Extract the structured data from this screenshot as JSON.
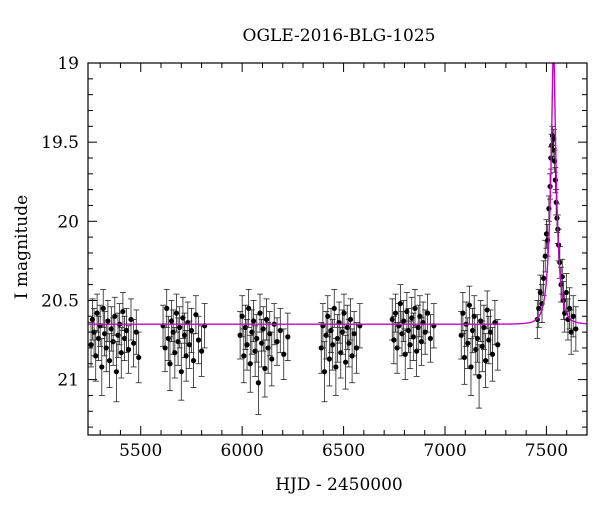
{
  "chart_data": {
    "type": "scatter",
    "title": "OGLE-2016-BLG-1025",
    "xlabel": "HJD - 2450000",
    "ylabel": "I magnitude",
    "xlim": [
      5240,
      7700
    ],
    "ylim": [
      21.35,
      19.0
    ],
    "y_inverted": true,
    "grid": false,
    "xticks": [
      5500,
      6000,
      6500,
      7000,
      7500
    ],
    "yticks": [
      19,
      19.5,
      20,
      20.5,
      21
    ],
    "ytick_labels": [
      "19",
      "19.5",
      "20",
      "20.5",
      "21"
    ],
    "model": {
      "color": "#cc00cc",
      "baseline_mag": 20.65,
      "t0": 7535,
      "tE": 33,
      "u0": 0.2
    },
    "series": [
      {
        "marker_color": "#000000",
        "points": [
          [
            5255,
            20.78,
            0.14
          ],
          [
            5262,
            20.62,
            0.13
          ],
          [
            5270,
            20.7,
            0.15
          ],
          [
            5278,
            20.85,
            0.16
          ],
          [
            5285,
            20.58,
            0.12
          ],
          [
            5292,
            20.74,
            0.14
          ],
          [
            5300,
            20.66,
            0.13
          ],
          [
            5308,
            20.92,
            0.18
          ],
          [
            5315,
            20.55,
            0.12
          ],
          [
            5322,
            20.71,
            0.14
          ],
          [
            5330,
            20.8,
            0.15
          ],
          [
            5338,
            20.63,
            0.13
          ],
          [
            5346,
            20.88,
            0.17
          ],
          [
            5355,
            20.68,
            0.14
          ],
          [
            5364,
            20.76,
            0.15
          ],
          [
            5372,
            20.6,
            0.12
          ],
          [
            5380,
            20.95,
            0.19
          ],
          [
            5388,
            20.72,
            0.14
          ],
          [
            5396,
            20.65,
            0.13
          ],
          [
            5404,
            20.83,
            0.16
          ],
          [
            5412,
            20.57,
            0.12
          ],
          [
            5420,
            20.74,
            0.14
          ],
          [
            5430,
            20.69,
            0.14
          ],
          [
            5440,
            20.81,
            0.15
          ],
          [
            5452,
            20.62,
            0.13
          ],
          [
            5465,
            20.77,
            0.15
          ],
          [
            5478,
            20.7,
            0.14
          ],
          [
            5490,
            20.86,
            0.16
          ],
          [
            5610,
            20.66,
            0.13
          ],
          [
            5620,
            20.8,
            0.15
          ],
          [
            5628,
            20.55,
            0.12
          ],
          [
            5636,
            20.74,
            0.14
          ],
          [
            5644,
            20.9,
            0.17
          ],
          [
            5652,
            20.63,
            0.13
          ],
          [
            5660,
            20.7,
            0.14
          ],
          [
            5668,
            20.83,
            0.16
          ],
          [
            5676,
            20.58,
            0.12
          ],
          [
            5684,
            20.76,
            0.15
          ],
          [
            5692,
            20.67,
            0.13
          ],
          [
            5700,
            20.95,
            0.18
          ],
          [
            5708,
            20.61,
            0.13
          ],
          [
            5716,
            20.72,
            0.14
          ],
          [
            5724,
            20.85,
            0.16
          ],
          [
            5732,
            20.64,
            0.13
          ],
          [
            5740,
            20.78,
            0.15
          ],
          [
            5750,
            20.69,
            0.14
          ],
          [
            5760,
            20.88,
            0.17
          ],
          [
            5772,
            20.59,
            0.12
          ],
          [
            5785,
            20.75,
            0.15
          ],
          [
            5800,
            20.82,
            0.16
          ],
          [
            5815,
            20.66,
            0.14
          ],
          [
            5990,
            20.72,
            0.15
          ],
          [
            6000,
            20.6,
            0.13
          ],
          [
            6008,
            20.85,
            0.17
          ],
          [
            6016,
            20.67,
            0.14
          ],
          [
            6024,
            20.78,
            0.16
          ],
          [
            6032,
            20.55,
            0.12
          ],
          [
            6040,
            20.9,
            0.18
          ],
          [
            6048,
            20.7,
            0.14
          ],
          [
            6056,
            20.63,
            0.13
          ],
          [
            6064,
            20.82,
            0.16
          ],
          [
            6072,
            20.74,
            0.15
          ],
          [
            6080,
            21.02,
            0.2
          ],
          [
            6088,
            20.58,
            0.12
          ],
          [
            6096,
            20.77,
            0.15
          ],
          [
            6104,
            20.68,
            0.14
          ],
          [
            6112,
            20.93,
            0.18
          ],
          [
            6120,
            20.62,
            0.13
          ],
          [
            6128,
            20.8,
            0.16
          ],
          [
            6136,
            20.71,
            0.14
          ],
          [
            6146,
            20.87,
            0.17
          ],
          [
            6158,
            20.65,
            0.13
          ],
          [
            6172,
            20.76,
            0.15
          ],
          [
            6188,
            20.69,
            0.14
          ],
          [
            6205,
            20.84,
            0.16
          ],
          [
            6225,
            20.73,
            0.15
          ],
          [
            6390,
            20.8,
            0.16
          ],
          [
            6398,
            20.66,
            0.14
          ],
          [
            6406,
            20.95,
            0.19
          ],
          [
            6414,
            20.72,
            0.15
          ],
          [
            6422,
            20.6,
            0.13
          ],
          [
            6430,
            20.87,
            0.17
          ],
          [
            6438,
            20.69,
            0.14
          ],
          [
            6446,
            20.78,
            0.16
          ],
          [
            6454,
            20.55,
            0.12
          ],
          [
            6462,
            20.92,
            0.18
          ],
          [
            6470,
            20.74,
            0.15
          ],
          [
            6478,
            20.64,
            0.13
          ],
          [
            6486,
            20.83,
            0.16
          ],
          [
            6494,
            20.7,
            0.14
          ],
          [
            6502,
            20.58,
            0.12
          ],
          [
            6510,
            20.89,
            0.17
          ],
          [
            6518,
            20.67,
            0.14
          ],
          [
            6526,
            20.77,
            0.15
          ],
          [
            6534,
            20.62,
            0.13
          ],
          [
            6542,
            20.85,
            0.17
          ],
          [
            6552,
            20.71,
            0.14
          ],
          [
            6564,
            20.8,
            0.16
          ],
          [
            6580,
            20.66,
            0.14
          ],
          [
            6740,
            20.62,
            0.13
          ],
          [
            6748,
            20.75,
            0.15
          ],
          [
            6756,
            20.58,
            0.12
          ],
          [
            6764,
            20.8,
            0.16
          ],
          [
            6772,
            20.66,
            0.14
          ],
          [
            6780,
            20.52,
            0.12
          ],
          [
            6788,
            20.71,
            0.14
          ],
          [
            6796,
            20.63,
            0.13
          ],
          [
            6804,
            20.84,
            0.16
          ],
          [
            6812,
            20.57,
            0.12
          ],
          [
            6820,
            20.69,
            0.14
          ],
          [
            6828,
            20.78,
            0.15
          ],
          [
            6836,
            20.61,
            0.13
          ],
          [
            6844,
            20.73,
            0.15
          ],
          [
            6852,
            20.55,
            0.12
          ],
          [
            6860,
            20.82,
            0.16
          ],
          [
            6868,
            20.67,
            0.14
          ],
          [
            6876,
            20.6,
            0.13
          ],
          [
            6884,
            20.76,
            0.15
          ],
          [
            6892,
            20.64,
            0.13
          ],
          [
            6902,
            20.7,
            0.14
          ],
          [
            6914,
            20.58,
            0.12
          ],
          [
            6928,
            20.74,
            0.15
          ],
          [
            6945,
            20.66,
            0.14
          ],
          [
            7080,
            20.72,
            0.15
          ],
          [
            7088,
            20.58,
            0.13
          ],
          [
            7096,
            20.86,
            0.17
          ],
          [
            7104,
            20.65,
            0.14
          ],
          [
            7112,
            20.77,
            0.16
          ],
          [
            7120,
            20.53,
            0.12
          ],
          [
            7128,
            20.92,
            0.18
          ],
          [
            7136,
            20.69,
            0.14
          ],
          [
            7144,
            20.6,
            0.13
          ],
          [
            7152,
            20.81,
            0.16
          ],
          [
            7160,
            20.74,
            0.15
          ],
          [
            7168,
            20.98,
            0.2
          ],
          [
            7176,
            20.63,
            0.13
          ],
          [
            7184,
            20.79,
            0.16
          ],
          [
            7192,
            20.67,
            0.14
          ],
          [
            7200,
            20.88,
            0.17
          ],
          [
            7208,
            20.56,
            0.12
          ],
          [
            7216,
            20.75,
            0.15
          ],
          [
            7224,
            20.7,
            0.14
          ],
          [
            7234,
            20.84,
            0.17
          ],
          [
            7246,
            20.64,
            0.14
          ],
          [
            7260,
            20.78,
            0.16
          ],
          [
            7455,
            20.62,
            0.12
          ],
          [
            7462,
            20.55,
            0.12
          ],
          [
            7470,
            20.45,
            0.11
          ],
          [
            7478,
            20.52,
            0.12
          ],
          [
            7486,
            20.36,
            0.11
          ],
          [
            7494,
            20.22,
            0.1
          ],
          [
            7500,
            20.08,
            0.09
          ],
          [
            7506,
            20.12,
            0.1
          ],
          [
            7512,
            19.92,
            0.08
          ],
          [
            7518,
            19.78,
            0.08
          ],
          [
            7522,
            19.6,
            0.07
          ],
          [
            7526,
            19.52,
            0.07
          ],
          [
            7530,
            19.46,
            0.06
          ],
          [
            7533,
            19.55,
            0.07
          ],
          [
            7536,
            19.48,
            0.06
          ],
          [
            7540,
            19.62,
            0.07
          ],
          [
            7544,
            19.74,
            0.08
          ],
          [
            7548,
            19.88,
            0.08
          ],
          [
            7552,
            19.98,
            0.09
          ],
          [
            7556,
            20.05,
            0.09
          ],
          [
            7560,
            20.15,
            0.1
          ],
          [
            7566,
            20.26,
            0.1
          ],
          [
            7572,
            20.4,
            0.11
          ],
          [
            7578,
            20.35,
            0.11
          ],
          [
            7584,
            20.5,
            0.12
          ],
          [
            7590,
            20.58,
            0.12
          ],
          [
            7598,
            20.45,
            0.12
          ],
          [
            7606,
            20.62,
            0.13
          ],
          [
            7614,
            20.55,
            0.13
          ],
          [
            7622,
            20.7,
            0.14
          ],
          [
            7632,
            20.6,
            0.13
          ],
          [
            7645,
            20.68,
            0.14
          ]
        ]
      }
    ]
  }
}
